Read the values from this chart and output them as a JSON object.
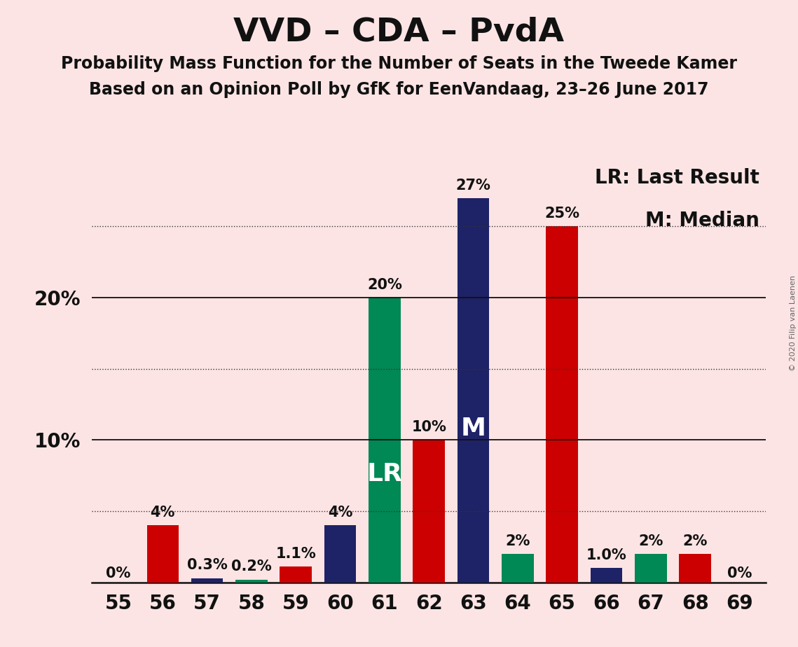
{
  "title": "VVD – CDA – PvdA",
  "subtitle1": "Probability Mass Function for the Number of Seats in the Tweede Kamer",
  "subtitle2": "Based on an Opinion Poll by GfK for EenVandaag, 23–26 June 2017",
  "copyright": "© 2020 Filip van Laenen",
  "legend_lr": "LR: Last Result",
  "legend_m": "M: Median",
  "background_color": "#fce4e4",
  "seats": [
    55,
    56,
    57,
    58,
    59,
    60,
    61,
    62,
    63,
    64,
    65,
    66,
    67,
    68,
    69
  ],
  "values": [
    0.0,
    4.0,
    0.3,
    0.2,
    1.1,
    4.0,
    20.0,
    10.0,
    27.0,
    2.0,
    25.0,
    1.0,
    2.0,
    2.0,
    0.0
  ],
  "colors": [
    "#cc0000",
    "#cc0000",
    "#1e2266",
    "#008855",
    "#cc0000",
    "#1e2266",
    "#008855",
    "#cc0000",
    "#1e2266",
    "#008855",
    "#cc0000",
    "#1e2266",
    "#008855",
    "#cc0000",
    "#cc0000"
  ],
  "labels": [
    "0%",
    "4%",
    "0.3%",
    "0.2%",
    "1.1%",
    "4%",
    "20%",
    "10%",
    "27%",
    "2%",
    "25%",
    "1.0%",
    "2%",
    "2%",
    "0%"
  ],
  "lr_seat": 61,
  "median_seat": 63,
  "ylim": [
    0,
    30
  ],
  "solid_lines": [
    10,
    20
  ],
  "dotted_lines": [
    5,
    15,
    25
  ],
  "bar_width": 0.72,
  "ax_background": "#fce4e4",
  "title_fontsize": 34,
  "subtitle_fontsize": 17,
  "label_fontsize": 15,
  "tick_fontsize": 20,
  "annotation_fontsize": 26,
  "legend_fontsize": 20,
  "ytick_fontsize": 20
}
